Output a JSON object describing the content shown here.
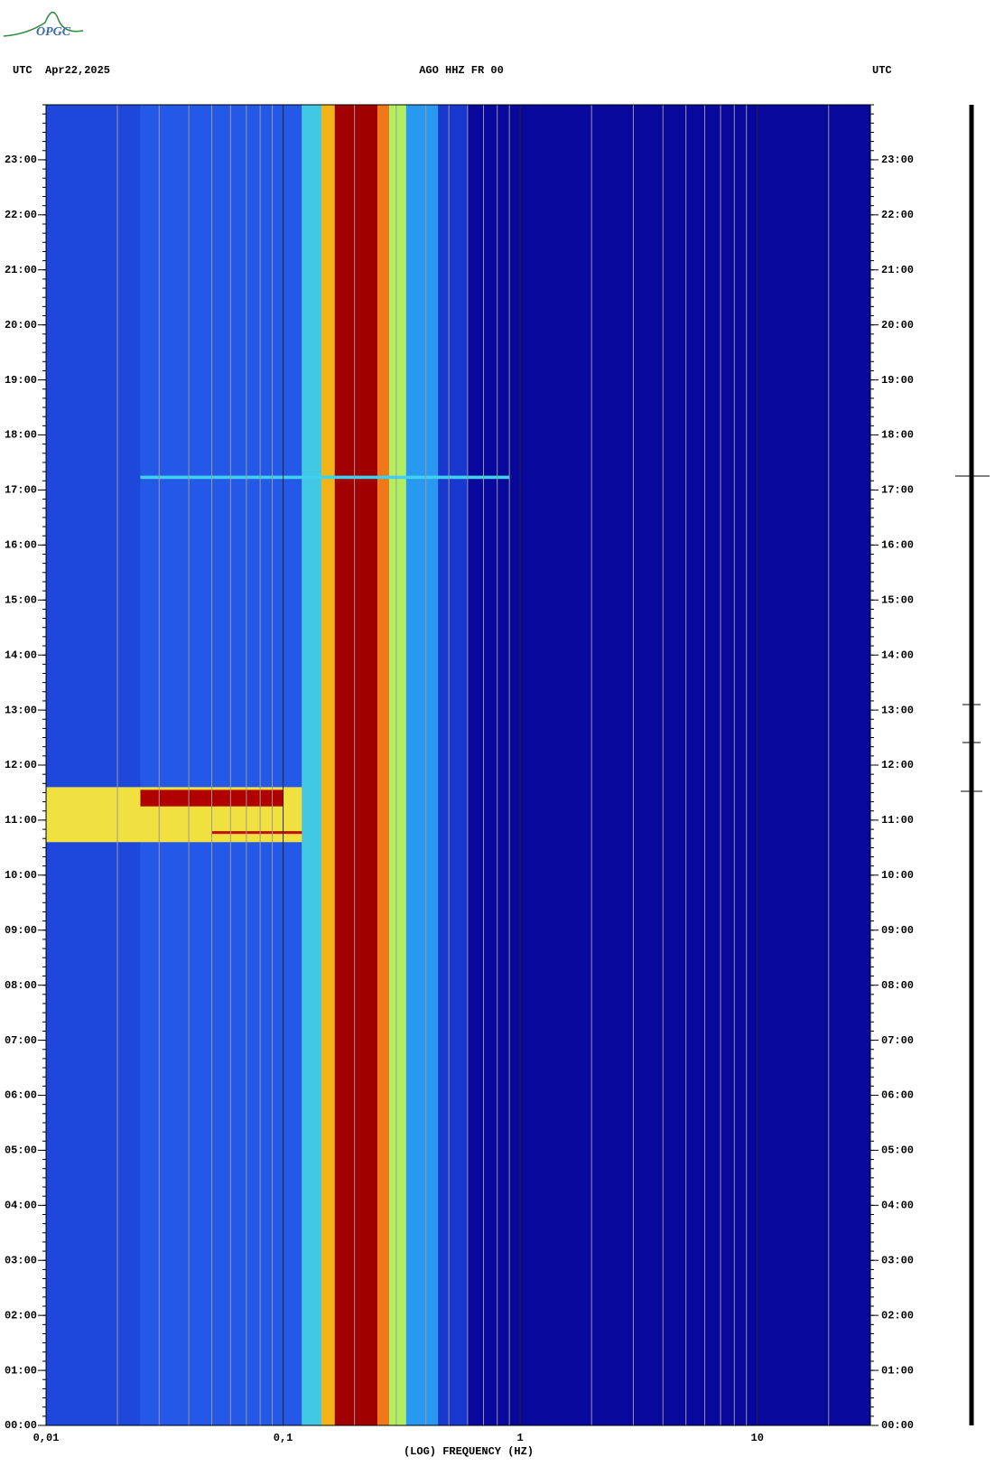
{
  "chart_data": {
    "type": "spectrogram",
    "logo": "OPGC",
    "header_left_tz": "UTC",
    "header_date": "Apr22,2025",
    "title": "AGO HHZ FR 00",
    "header_right_tz": "UTC",
    "xlabel": "(LOG) FREQUENCY (HZ)",
    "xscale": "log",
    "xlim": [
      0.01,
      30
    ],
    "xticks": [
      {
        "value": 0.01,
        "label": "0,01"
      },
      {
        "value": 0.1,
        "label": "0,1"
      },
      1,
      10
    ],
    "xgrid": [
      0.02,
      0.03,
      0.04,
      0.05,
      0.06,
      0.07,
      0.08,
      0.09,
      0.2,
      0.3,
      0.4,
      0.5,
      0.6,
      0.7,
      0.8,
      0.9,
      2,
      3,
      4,
      5,
      6,
      7,
      8,
      9,
      20
    ],
    "ylim": [
      0,
      24
    ],
    "yticks": [
      {
        "value": 0,
        "label": "00:00"
      },
      {
        "value": 1,
        "label": "01:00"
      },
      {
        "value": 2,
        "label": "02:00"
      },
      {
        "value": 3,
        "label": "03:00"
      },
      {
        "value": 4,
        "label": "04:00"
      },
      {
        "value": 5,
        "label": "05:00"
      },
      {
        "value": 6,
        "label": "06:00"
      },
      {
        "value": 7,
        "label": "07:00"
      },
      {
        "value": 8,
        "label": "08:00"
      },
      {
        "value": 9,
        "label": "09:00"
      },
      {
        "value": 10,
        "label": "10:00"
      },
      {
        "value": 11,
        "label": "11:00"
      },
      {
        "value": 12,
        "label": "12:00"
      },
      {
        "value": 13,
        "label": "13:00"
      },
      {
        "value": 14,
        "label": "14:00"
      },
      {
        "value": 15,
        "label": "15:00"
      },
      {
        "value": 16,
        "label": "16:00"
      },
      {
        "value": 17,
        "label": "17:00"
      },
      {
        "value": 18,
        "label": "18:00"
      },
      {
        "value": 19,
        "label": "19:00"
      },
      {
        "value": 20,
        "label": "20:00"
      },
      {
        "value": 21,
        "label": "21:00"
      },
      {
        "value": 22,
        "label": "22:00"
      },
      {
        "value": 23,
        "label": "23:00"
      }
    ],
    "columns": [
      {
        "x0": 0.01,
        "x1": 0.025,
        "color": "#1e48dc"
      },
      {
        "x0": 0.025,
        "x1": 0.12,
        "color": "#2458e6"
      },
      {
        "x0": 0.12,
        "x1": 0.145,
        "color": "#40c8e4"
      },
      {
        "x0": 0.145,
        "x1": 0.165,
        "color": "#f0b418"
      },
      {
        "x0": 0.165,
        "x1": 0.25,
        "color": "#a00000"
      },
      {
        "x0": 0.25,
        "x1": 0.28,
        "color": "#f07818"
      },
      {
        "x0": 0.28,
        "x1": 0.33,
        "color": "#b0f060"
      },
      {
        "x0": 0.33,
        "x1": 0.45,
        "color": "#2898f0"
      },
      {
        "x0": 0.45,
        "x1": 0.6,
        "color": "#1838d0"
      },
      {
        "x0": 0.6,
        "x1": 30,
        "color": "#08089c"
      }
    ],
    "events": [
      {
        "x0": 0.01,
        "x1": 0.12,
        "y0": 10.6,
        "y1": 11.6,
        "color": "#f0e040"
      },
      {
        "x0": 0.025,
        "x1": 0.1,
        "y0": 11.25,
        "y1": 11.55,
        "color": "#b00000"
      },
      {
        "x0": 0.05,
        "x1": 0.12,
        "y0": 10.75,
        "y1": 10.8,
        "color": "#c01010"
      },
      {
        "x0": 0.025,
        "x1": 0.9,
        "y0": 17.2,
        "y1": 17.26,
        "color": "#40d0f0"
      }
    ]
  }
}
